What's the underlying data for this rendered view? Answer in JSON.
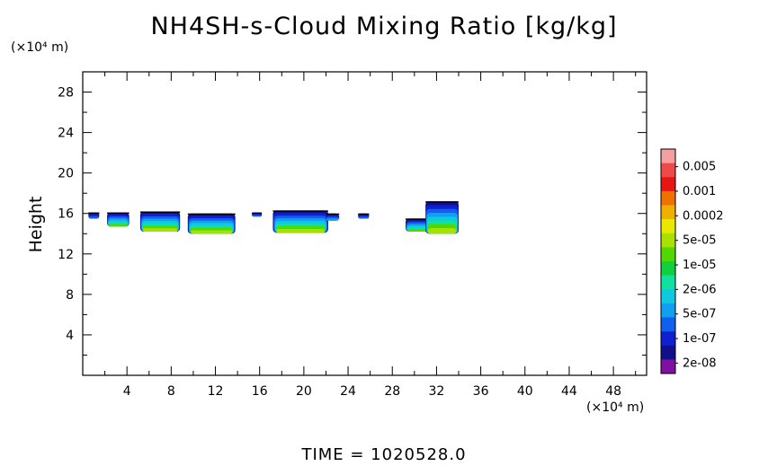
{
  "chart_data": {
    "type": "heatmap",
    "title": "NH4SH-s-Cloud Mixing Ratio [kg/kg]",
    "ylabel": "Height",
    "y_unit": "(×10⁴ m)",
    "x_unit": "(×10⁴ m)",
    "xlim": [
      0,
      51
    ],
    "ylim": [
      0,
      30
    ],
    "x_ticks": [
      4,
      8,
      12,
      16,
      20,
      24,
      28,
      32,
      36,
      40,
      44,
      48
    ],
    "y_ticks": [
      4,
      8,
      12,
      16,
      20,
      24,
      28
    ],
    "colorbar": {
      "labels": [
        "0.005",
        "0.001",
        "0.0002",
        "5e-05",
        "1e-05",
        "2e-06",
        "5e-07",
        "1e-07",
        "2e-08"
      ],
      "colors": [
        "#f5a0a0",
        "#ef4a4a",
        "#e81515",
        "#f07000",
        "#f0b000",
        "#e8e800",
        "#a8e000",
        "#50d800",
        "#10d040",
        "#10e0a0",
        "#10c8e0",
        "#10a0f0",
        "#1060f0",
        "#1020d0",
        "#10108a",
        "#8010a0"
      ]
    },
    "cloud_patches": [
      {
        "x": [
          0.5,
          1.5
        ],
        "y": [
          15.5,
          16.1
        ]
      },
      {
        "x": [
          2.2,
          4.2
        ],
        "y": [
          14.7,
          16.1
        ]
      },
      {
        "x": [
          5.2,
          8.8
        ],
        "y": [
          14.2,
          16.2
        ]
      },
      {
        "x": [
          9.5,
          13.8
        ],
        "y": [
          14.0,
          16.0
        ]
      },
      {
        "x": [
          15.3,
          16.2
        ],
        "y": [
          15.7,
          16.1
        ]
      },
      {
        "x": [
          17.2,
          22.2
        ],
        "y": [
          14.1,
          16.3
        ]
      },
      {
        "x": [
          22.0,
          23.2
        ],
        "y": [
          15.3,
          16.0
        ]
      },
      {
        "x": [
          24.9,
          25.9
        ],
        "y": [
          15.5,
          16.0
        ]
      },
      {
        "x": [
          29.2,
          31.8
        ],
        "y": [
          14.2,
          15.5
        ]
      },
      {
        "x": [
          31.0,
          34.0
        ],
        "y": [
          14.0,
          17.2
        ]
      }
    ]
  },
  "footer": {
    "time_label": "TIME = 1020528.0"
  }
}
